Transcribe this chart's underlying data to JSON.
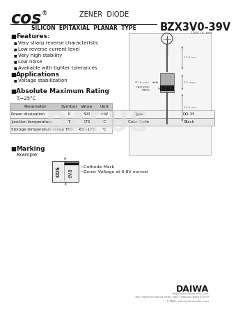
{
  "zener_diode": "ZENER  DIODE",
  "silicon_type": "SILICON  EPITAXIAL  PLANAR  TYPE",
  "part_number": "BZX3V0-39V",
  "features_title": "Features:",
  "features": [
    "Very sharp reverse characteristic",
    "Low reverse current level",
    "Very high stability",
    "Low noise",
    "Available with tighter tolerances"
  ],
  "applications_title": "Applications",
  "applications": [
    "Voltage stabilization"
  ],
  "abs_max_title": "Absolute Maximum Rating",
  "temp_cond": "Tⱼ=25°C",
  "table_headers": [
    "Parameter",
    "Symbol",
    "Value",
    "Unit"
  ],
  "table_rows": [
    [
      "Power dissipation",
      "P",
      "500",
      "mW"
    ],
    [
      "Junction temperature",
      "Tⱼ",
      "175",
      "°C"
    ],
    [
      "Storage temperature range",
      "TⱼTG",
      "-65~175",
      "°C"
    ]
  ],
  "package_info": [
    [
      "Type",
      "DO-35"
    ],
    [
      "Color Code",
      "Black"
    ]
  ],
  "marking_title": "Marking",
  "marking_example": "Example:",
  "marking_text1": "Zener Voltage at 6.8V normal",
  "marking_text2": "Cathode Mark",
  "unit_label": "Unit: in  mm",
  "daiwa_text": "DAIWA",
  "daiwa_sub": "http://www.daiwa-ltd.com    TEL: 886(0)2-86674-9798  FAX: 886(0)2-86674-9797\nE-MAIL: sales@daiwa-elec.com    http://www.daiwa-elec.com",
  "bg_color": "#ffffff",
  "text_color": "#1a1a1a",
  "gray_color": "#777777",
  "table_header_bg": "#c8c8c8",
  "table_row1_bg": "#f2f2f2",
  "table_row2_bg": "#e8e8e8",
  "diag_bg": "#f5f5f5",
  "diag_border": "#999999",
  "watermark_color": "#e0e0e0"
}
